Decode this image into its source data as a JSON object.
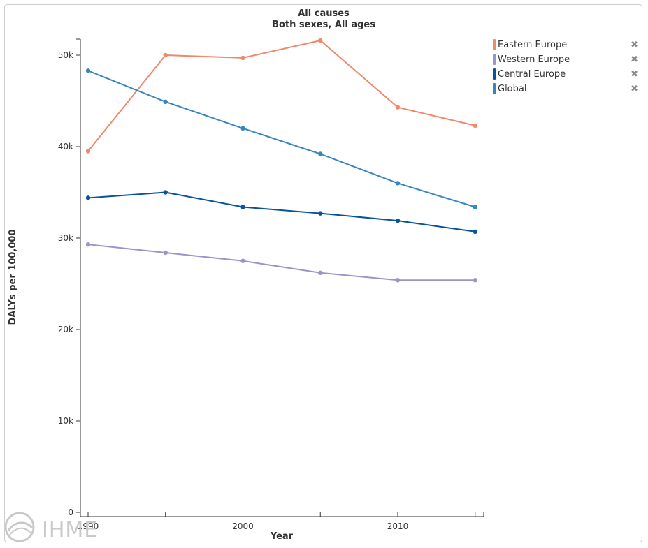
{
  "chart_data": {
    "type": "line",
    "title": "All causes",
    "subtitle": "Both sexes, All ages",
    "xlabel": "Year",
    "ylabel": "DALYs per 100,000",
    "xlim": [
      1990,
      2015
    ],
    "ylim": [
      0,
      52000
    ],
    "x_ticks": [
      1990,
      2000,
      2010
    ],
    "x_tick_labels": [
      "1990",
      "2000",
      "2010"
    ],
    "y_ticks": [
      0,
      10000,
      20000,
      30000,
      40000,
      50000
    ],
    "y_tick_labels": [
      "0",
      "10k",
      "20k",
      "30k",
      "40k",
      "50k"
    ],
    "grid": false,
    "legend_position": "top-right",
    "x": [
      1990,
      1995,
      2000,
      2005,
      2010,
      2015
    ],
    "series": [
      {
        "name": "Eastern Europe",
        "color": "#f0896b",
        "values": [
          39500,
          50000,
          49700,
          51600,
          44300,
          42300
        ]
      },
      {
        "name": "Western Europe",
        "color": "#9c93c9",
        "values": [
          29300,
          28400,
          27500,
          26200,
          25400,
          25400
        ]
      },
      {
        "name": "Central Europe",
        "color": "#08539a",
        "values": [
          34400,
          35000,
          33400,
          32700,
          31900,
          30700
        ]
      },
      {
        "name": "Global",
        "color": "#3585c0",
        "values": [
          48300,
          44900,
          42000,
          39200,
          36000,
          33400
        ]
      }
    ]
  },
  "legend": {
    "remove_glyph": "✖"
  },
  "logo": {
    "text": "IHME"
  }
}
